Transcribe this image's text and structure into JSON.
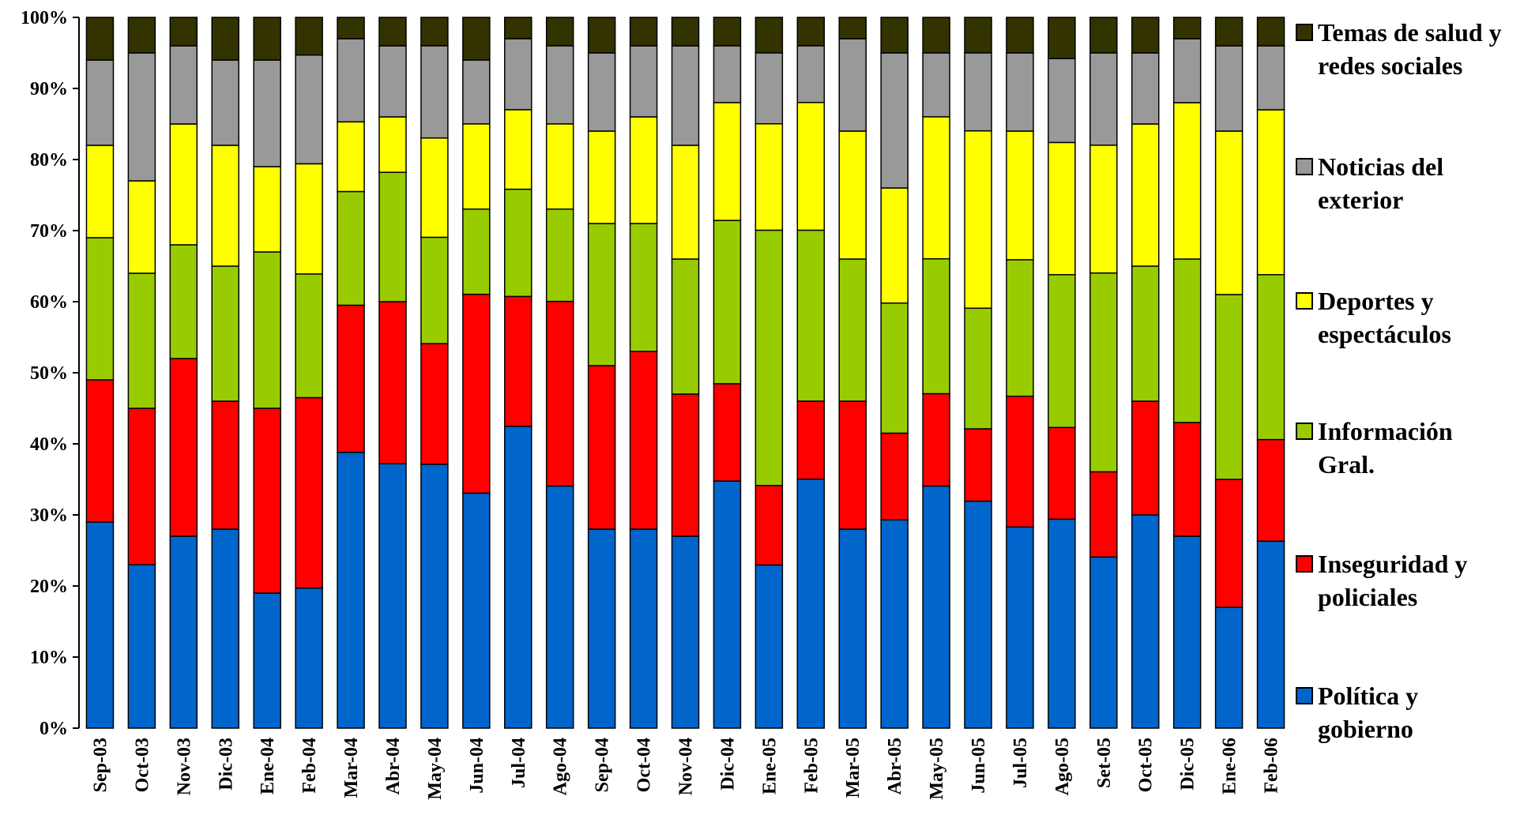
{
  "chart_data": {
    "type": "bar",
    "stacked": true,
    "normalized": true,
    "categories": [
      "Sep-03",
      "Oct-03",
      "Nov-03",
      "Dic-03",
      "Ene-04",
      "Feb-04",
      "Mar-04",
      "Abr-04",
      "May-04",
      "Jun-04",
      "Jul-04",
      "Ago-04",
      "Sep-04",
      "Oct-04",
      "Nov-04",
      "Dic-04",
      "Ene-05",
      "Feb-05",
      "Mar-05",
      "Abr-05",
      "May-05",
      "Jun-05",
      "Jul-05",
      "Ago-05",
      "Set-05",
      "Oct-05",
      "Dic-05",
      "Ene-06",
      "Feb-06"
    ],
    "yticks": [
      "0%",
      "10%",
      "20%",
      "30%",
      "40%",
      "50%",
      "60%",
      "70%",
      "80%",
      "90%",
      "100%"
    ],
    "ylim": [
      0,
      100
    ],
    "legend_position": "right",
    "series": [
      {
        "name": "Política y gobierno",
        "color": "#0066cc",
        "values": [
          29,
          23,
          27,
          28,
          19,
          19.7,
          38.8,
          37.2,
          37.2,
          33.1,
          42.5,
          34.1,
          28,
          28,
          27,
          34.8,
          23,
          35.1,
          28,
          29.3,
          34.1,
          32,
          28.3,
          29.4,
          24.1,
          30,
          27,
          17,
          26.3
        ]
      },
      {
        "name": "Inseguridad y policiales",
        "color": "#ff0000",
        "values": [
          20,
          22,
          25,
          18,
          26,
          26.8,
          20.7,
          22.8,
          17,
          28,
          18.3,
          26,
          23,
          25,
          20,
          13.7,
          11.2,
          11,
          18,
          12.2,
          13,
          10.2,
          18.4,
          12.9,
          12,
          16,
          16,
          18,
          14.3
        ]
      },
      {
        "name": "Información Gral.",
        "color": "#99cc00",
        "values": [
          20,
          19,
          16,
          19,
          22,
          17.4,
          16,
          18.2,
          15,
          12,
          15.1,
          13,
          20,
          18,
          19,
          23,
          36,
          24.1,
          20,
          18.3,
          19,
          17,
          19.2,
          21.5,
          28,
          19,
          23,
          26,
          23.2
        ]
      },
      {
        "name": "Deportes y espectáculos",
        "color": "#ffff00",
        "values": [
          13,
          13,
          17,
          17,
          12,
          15.5,
          9.8,
          7.8,
          14,
          12,
          11.2,
          12,
          13,
          15,
          16,
          16.6,
          15,
          18,
          18,
          16.2,
          20,
          25,
          18.1,
          18.6,
          18,
          20,
          22,
          23,
          23.2
        ]
      },
      {
        "name": "Noticias del exterior",
        "color": "#999999",
        "values": [
          12,
          18,
          11,
          12,
          15,
          15.3,
          11.7,
          10,
          13,
          9,
          10,
          11,
          11,
          10,
          14,
          8,
          10,
          8,
          13,
          19,
          9,
          11,
          11,
          11.8,
          13,
          10,
          9,
          12,
          9
        ]
      },
      {
        "name": "Temas de salud y redes sociales",
        "color": "#333300",
        "values": [
          6,
          5,
          4,
          6,
          6,
          5.3,
          3,
          4,
          4,
          6,
          3,
          4,
          5,
          4,
          4,
          4,
          5,
          4,
          3,
          5,
          5,
          5,
          5,
          5.8,
          5,
          5,
          3,
          4,
          4
        ]
      }
    ]
  },
  "legend": {
    "items": [
      {
        "label": "Temas de salud y redes sociales",
        "color": "#333300"
      },
      {
        "label": "Noticias del exterior",
        "color": "#999999"
      },
      {
        "label": "Deportes y espectáculos",
        "color": "#ffff00"
      },
      {
        "label": "Información Gral.",
        "color": "#99cc00"
      },
      {
        "label": "Inseguridad y policiales",
        "color": "#ff0000"
      },
      {
        "label": "Política y gobierno",
        "color": "#0066cc"
      }
    ]
  }
}
